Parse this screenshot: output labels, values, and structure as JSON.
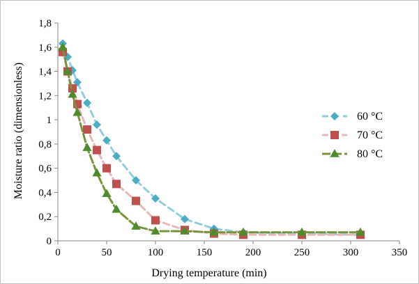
{
  "chart_data": {
    "type": "line",
    "title": "",
    "xlabel": "Drying temperature (min)",
    "ylabel": "Moisture ratio  (dimensionless)",
    "xlim": [
      0,
      350
    ],
    "ylim": [
      0,
      1.8
    ],
    "xticks": [
      0,
      50,
      100,
      150,
      200,
      250,
      300,
      350
    ],
    "yticks": [
      "0",
      "0,2",
      "0,4",
      "0,6",
      "0,8",
      "1",
      "1,2",
      "1,4",
      "1,6",
      "1,8"
    ],
    "grid": false,
    "legend_position": "right",
    "series": [
      {
        "name": "60 °C",
        "color": "#4bacc6",
        "line_color": "#93cddd",
        "marker": "diamond",
        "points": [
          [
            5,
            1.63
          ],
          [
            10,
            1.52
          ],
          [
            15,
            1.41
          ],
          [
            20,
            1.31
          ],
          [
            30,
            1.14
          ],
          [
            40,
            0.96
          ],
          [
            50,
            0.83
          ],
          [
            60,
            0.7
          ],
          [
            80,
            0.5
          ],
          [
            100,
            0.35
          ],
          [
            130,
            0.18
          ],
          [
            160,
            0.1
          ],
          [
            190,
            0.07
          ],
          [
            250,
            0.06
          ],
          [
            310,
            0.05
          ]
        ]
      },
      {
        "name": "70 °C",
        "color": "#c0504d",
        "line_color": "#e6b9b8",
        "marker": "square",
        "points": [
          [
            5,
            1.56
          ],
          [
            10,
            1.4
          ],
          [
            15,
            1.26
          ],
          [
            20,
            1.13
          ],
          [
            30,
            0.92
          ],
          [
            40,
            0.75
          ],
          [
            50,
            0.6
          ],
          [
            60,
            0.47
          ],
          [
            80,
            0.33
          ],
          [
            100,
            0.17
          ],
          [
            130,
            0.09
          ],
          [
            160,
            0.06
          ],
          [
            190,
            0.05
          ],
          [
            250,
            0.05
          ],
          [
            310,
            0.05
          ]
        ]
      },
      {
        "name": "80 °C",
        "color": "#4f8a2b",
        "line_color": "#77933c",
        "marker": "triangle",
        "points": [
          [
            5,
            1.6
          ],
          [
            10,
            1.4
          ],
          [
            15,
            1.21
          ],
          [
            20,
            1.06
          ],
          [
            30,
            0.77
          ],
          [
            40,
            0.56
          ],
          [
            50,
            0.39
          ],
          [
            60,
            0.26
          ],
          [
            80,
            0.12
          ],
          [
            100,
            0.08
          ],
          [
            130,
            0.08
          ],
          [
            160,
            0.07
          ],
          [
            190,
            0.07
          ],
          [
            250,
            0.07
          ],
          [
            310,
            0.07
          ]
        ]
      }
    ]
  }
}
